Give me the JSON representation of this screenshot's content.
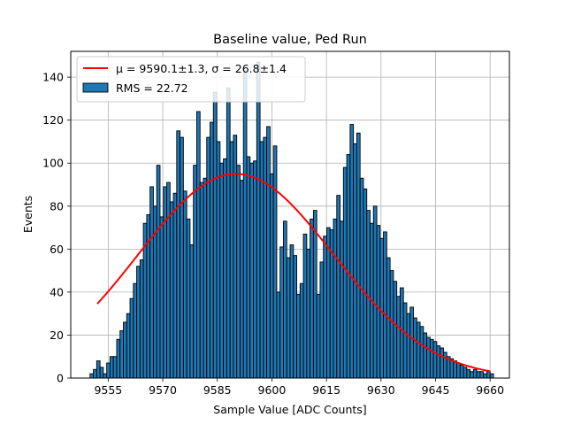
{
  "chart_data": {
    "type": "bar",
    "title": "Baseline value, Ped Run",
    "xlabel": "Sample Value [ADC Counts]",
    "ylabel": "Events",
    "xlim": [
      9544.7,
      9665.3
    ],
    "ylim": [
      0,
      152
    ],
    "xticks": [
      9555,
      9570,
      9585,
      9600,
      9615,
      9630,
      9645,
      9660
    ],
    "yticks": [
      0,
      20,
      40,
      60,
      80,
      100,
      120,
      140
    ],
    "grid": true,
    "legend": {
      "position": "top-left",
      "fit_label_prefix": "μ = 9590.1±1.3, σ = 26.8±1.4",
      "hist_label": "RMS = 22.72"
    },
    "histogram": {
      "bin_start": 9550,
      "bin_width": 0.9167,
      "values": [
        2,
        4,
        8,
        5,
        2,
        7,
        10,
        10,
        18,
        22,
        26,
        30,
        37,
        44,
        52,
        55,
        72,
        76,
        89,
        80,
        99,
        75,
        89,
        91,
        82,
        86,
        115,
        112,
        87,
        74,
        62,
        99,
        124,
        91,
        93,
        112,
        119,
        133,
        110,
        100,
        102,
        135,
        110,
        113,
        99,
        92,
        143,
        103,
        100,
        101,
        147,
        110,
        112,
        117,
        95,
        108,
        40,
        61,
        73,
        56,
        62,
        57,
        39,
        44,
        67,
        60,
        74,
        78,
        39,
        54,
        66,
        70,
        69,
        74,
        85,
        73,
        98,
        104,
        118,
        109,
        114,
        93,
        88,
        78,
        72,
        80,
        71,
        65,
        68,
        56,
        50,
        45,
        38,
        42,
        35,
        30,
        33,
        28,
        26,
        24,
        21,
        19,
        18,
        17,
        15,
        14,
        12,
        10,
        9,
        8,
        7,
        6,
        5,
        4,
        3,
        4,
        3,
        3,
        2,
        3,
        2
      ]
    },
    "fit": {
      "type": "gaussian",
      "mu": 9590.1,
      "sigma": 26.8,
      "amplitude": 95,
      "x_range": [
        9552,
        9660
      ]
    },
    "colors": {
      "bars": "#1f77b4",
      "fit": "#ff0000"
    }
  }
}
